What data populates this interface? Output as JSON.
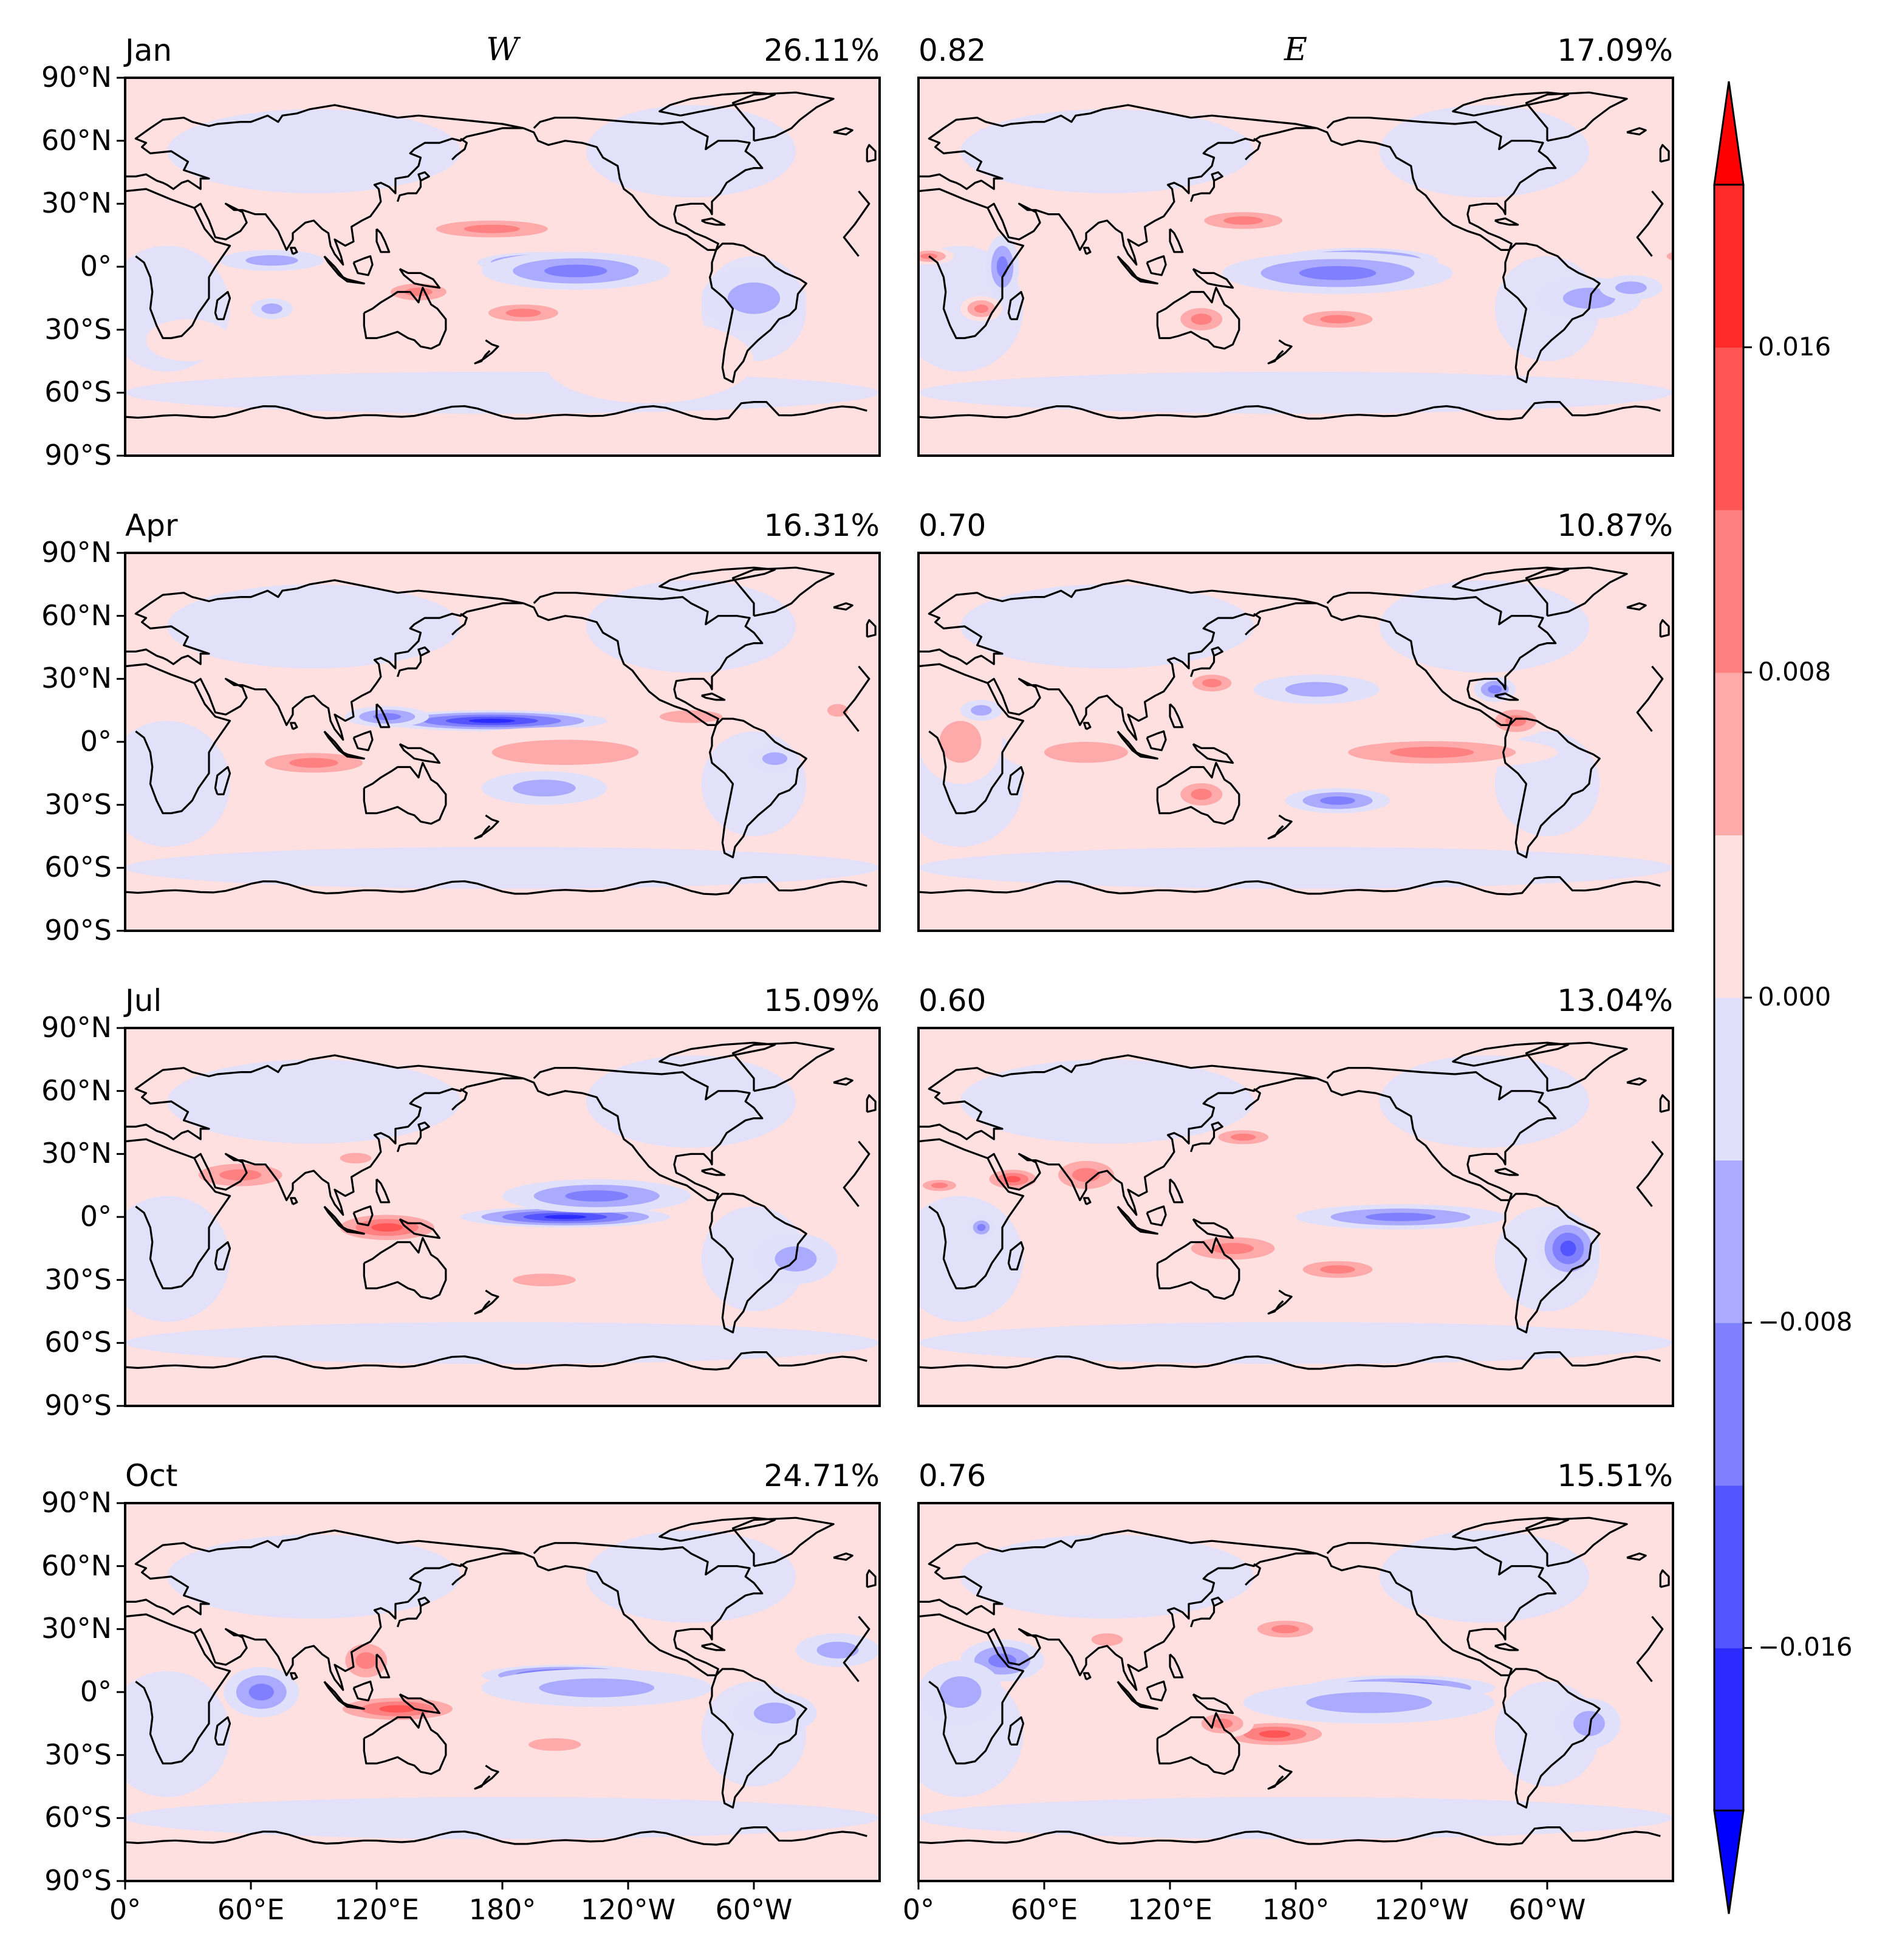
{
  "chart_data": {
    "type": "heatmap",
    "description_kind": "multi-panel filled contour world maps",
    "columns": [
      {
        "key": "W",
        "title": "W"
      },
      {
        "key": "E",
        "title": "E"
      }
    ],
    "rows": [
      {
        "month": "Jan",
        "W_variance": "26.11%",
        "correlation": "0.82",
        "E_variance": "17.09%"
      },
      {
        "month": "Apr",
        "W_variance": "16.31%",
        "correlation": "0.70",
        "E_variance": "10.87%"
      },
      {
        "month": "Jul",
        "W_variance": "15.09%",
        "correlation": "0.60",
        "E_variance": "13.04%"
      },
      {
        "month": "Oct",
        "W_variance": "24.71%",
        "correlation": "0.76",
        "E_variance": "15.51%"
      }
    ],
    "y_ticks": [
      "90°N",
      "60°N",
      "30°N",
      "0°",
      "30°S",
      "60°S",
      "90°S"
    ],
    "y_range": [
      -90,
      90
    ],
    "x_ticks": [
      "0°",
      "60°E",
      "120°E",
      "180°",
      "120°W",
      "60°W"
    ],
    "x_range": [
      0,
      360
    ],
    "colorbar": {
      "ticks": [
        "0.016",
        "0.008",
        "0.000",
        "−0.008",
        "−0.016"
      ],
      "tick_values": [
        0.016,
        0.008,
        0.0,
        -0.008,
        -0.016
      ],
      "levels": [
        -0.02,
        -0.016,
        -0.012,
        -0.008,
        -0.004,
        0.0,
        0.004,
        0.008,
        0.012,
        0.016,
        0.02
      ],
      "extend": "both",
      "colors": [
        "#0000ff",
        "#2b2bff",
        "#5555ff",
        "#8080ff",
        "#aaaaff",
        "#d5d5ff",
        "#e0e0fa",
        "#ffe0e0",
        "#ffd5d5",
        "#ffaaaa",
        "#ff8080",
        "#ff5555",
        "#ff2b2b",
        "#ff0000"
      ],
      "cmap": "bwr"
    },
    "legend_position": "right"
  }
}
